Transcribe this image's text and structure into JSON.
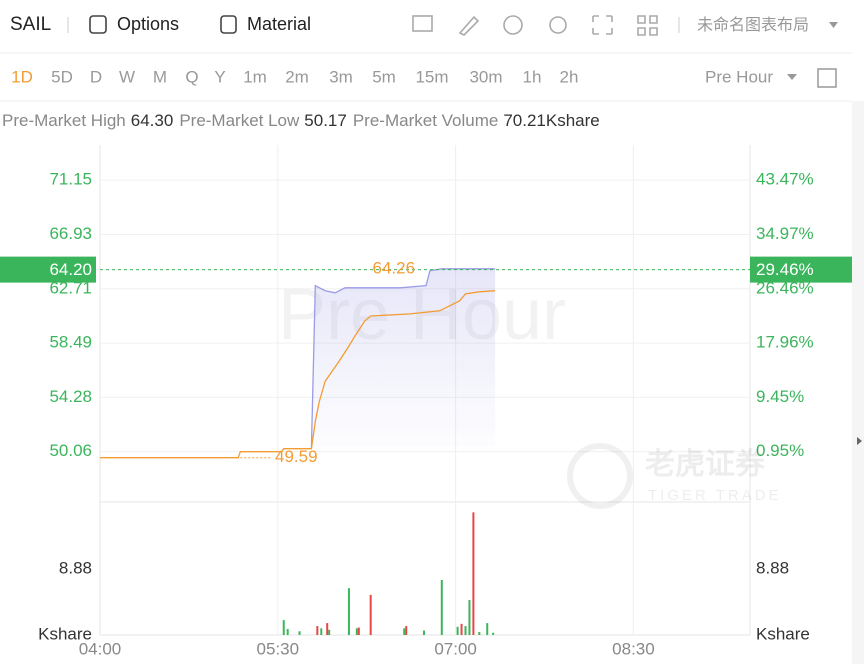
{
  "toolbar": {
    "symbol": "SAIL",
    "buttons": [
      "Options",
      "Material"
    ],
    "layout_name": "未命名图表布局"
  },
  "periods": {
    "items": [
      "1D",
      "5D",
      "D",
      "W",
      "M",
      "Q",
      "Y",
      "1m",
      "2m",
      "3m",
      "5m",
      "15m",
      "30m",
      "1h",
      "2h"
    ],
    "active": 0,
    "mode": "Pre Hour"
  },
  "stats": [
    {
      "label": "Pre-Market High",
      "value": "64.30"
    },
    {
      "label": "Pre-Market Low",
      "value": "50.17"
    },
    {
      "label": "Pre-Market Volume",
      "value": "70.21Kshare"
    }
  ],
  "watermark": "Pre Hour",
  "logo": {
    "name": "老虎证券",
    "tagline": "TIGER TRADE"
  },
  "chart_data": [
    {
      "type": "line",
      "xlim": [
        "04:00",
        "09:29"
      ],
      "xticks": [
        "04:00",
        "05:30",
        "07:00",
        "08:30"
      ],
      "ylim": [
        46.15,
        73.88
      ],
      "yticks": [
        71.15,
        66.93,
        62.71,
        58.49,
        54.28,
        50.06
      ],
      "y2lim": [
        -6.94,
        48.98
      ],
      "y2ticks": [
        {
          "value": 43.47,
          "label": "43.47%"
        },
        {
          "value": 34.97,
          "label": "34.97%"
        },
        {
          "value": 26.46,
          "label": "26.46%"
        },
        {
          "value": 17.96,
          "label": "17.96%"
        },
        {
          "value": 9.45,
          "label": "9.45%"
        },
        {
          "value": 0.95,
          "label": "0.95%"
        }
      ],
      "grid": true,
      "series": [
        {
          "color": "#9c9ce6",
          "x": [
            "05:47",
            "05:49",
            "05:54",
            "05:59",
            "06:04",
            "06:32",
            "06:45",
            "06:47",
            "06:53",
            "07:20"
          ],
          "values": [
            50.29,
            62.95,
            62.56,
            62.4,
            62.79,
            62.79,
            62.95,
            64.12,
            64.26,
            64.26
          ]
        },
        {
          "color": "#f39c32",
          "x": [
            "04:00",
            "05:10",
            "05:11",
            "05:32",
            "05:33",
            "05:47",
            "05:49",
            "05:51",
            "05:54",
            "06:01",
            "06:06",
            "06:09",
            "06:14",
            "06:17",
            "06:37",
            "06:52",
            "07:02",
            "07:05",
            "07:12",
            "07:20"
          ],
          "values": [
            49.59,
            49.59,
            50.06,
            50.06,
            50.29,
            50.29,
            52.4,
            53.96,
            55.53,
            57.09,
            58.26,
            59.04,
            60.21,
            60.6,
            60.76,
            61.0,
            61.78,
            62.32,
            62.48,
            62.56
          ]
        }
      ],
      "last_price": 64.2,
      "last_price_label": "64.20",
      "last_change": 29.46,
      "last_change_label": "29.46%",
      "annotations": [
        {
          "x": "06:53",
          "value": 64.26
        },
        {
          "x": "05:11",
          "value": 49.59
        }
      ]
    },
    {
      "type": "bar",
      "xlim": [
        "04:00",
        "09:29"
      ],
      "ylim": [
        0,
        17.49
      ],
      "yticks": [
        {
          "value": 0,
          "label": "Kshare"
        },
        8.88
      ],
      "series": [
        {
          "color": "#3bb55c",
          "x": [
            "05:33",
            "05:35",
            "05:41",
            "05:52",
            "05:56",
            "06:06",
            "06:10",
            "06:34",
            "06:44",
            "06:53",
            "07:01",
            "07:05",
            "07:07",
            "07:12",
            "07:16",
            "07:19"
          ],
          "values": [
            2.0,
            0.8,
            0.5,
            0.9,
            0.7,
            6.3,
            0.9,
            0.9,
            0.6,
            7.4,
            1.1,
            1.2,
            4.7,
            0.4,
            1.6,
            0.3
          ]
        },
        {
          "color": "#e84545",
          "x": [
            "05:50",
            "05:55",
            "06:11",
            "06:17",
            "06:35",
            "07:03",
            "07:09"
          ],
          "values": [
            1.2,
            1.6,
            1.0,
            5.4,
            1.2,
            1.5,
            16.5
          ]
        }
      ]
    }
  ]
}
